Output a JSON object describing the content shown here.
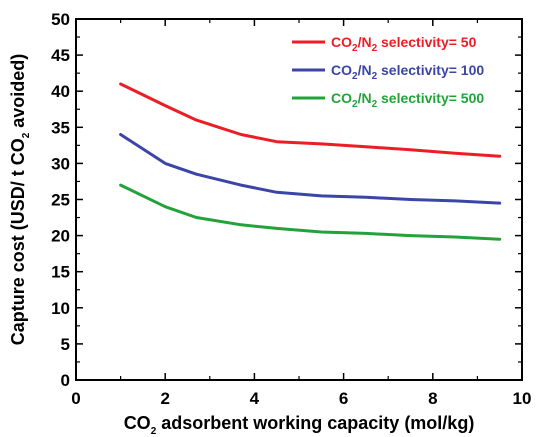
{
  "chart_data": {
    "type": "line",
    "title": "",
    "xlim": [
      0,
      10
    ],
    "ylim": [
      0,
      50
    ],
    "x_ticks": [
      0,
      2,
      4,
      6,
      8,
      10
    ],
    "y_ticks": [
      0,
      5,
      10,
      15,
      20,
      25,
      30,
      35,
      40,
      45,
      50
    ],
    "x_tick_labels": [
      "0",
      "2",
      "4",
      "6",
      "8",
      "10"
    ],
    "y_tick_labels": [
      "0",
      "5",
      "10",
      "15",
      "20",
      "25",
      "30",
      "35",
      "40",
      "45",
      "50"
    ],
    "xlabel": {
      "pre": "CO",
      "sub": "2",
      "post": " adsorbent working capacity (mol/kg)"
    },
    "ylabel": {
      "pre": "Capture cost (USD/ t CO",
      "sub": "2",
      "post": " avoided)"
    },
    "grid": false,
    "legend_position": "top-right",
    "series": [
      {
        "name": "CO2/N2 selectivity= 50",
        "legend": {
          "a": "CO",
          "s1": "2",
          "b": "/N",
          "s2": "2",
          "c": " selectivity= 50"
        },
        "color": "#ee1c25",
        "x": [
          1.0,
          2.0,
          2.7,
          3.7,
          4.5,
          5.5,
          6.5,
          7.5,
          8.5,
          9.5
        ],
        "y": [
          41.0,
          38.0,
          36.0,
          34.0,
          33.0,
          32.7,
          32.3,
          31.9,
          31.4,
          31.0
        ]
      },
      {
        "name": "CO2/N2 selectivity= 100",
        "legend": {
          "a": "CO",
          "s1": "2",
          "b": "/N",
          "s2": "2",
          "c": " selectivity= 100"
        },
        "color": "#3b45a8",
        "x": [
          1.0,
          2.0,
          2.7,
          3.7,
          4.5,
          5.5,
          6.5,
          7.5,
          8.5,
          9.5
        ],
        "y": [
          34.0,
          30.0,
          28.5,
          27.0,
          26.0,
          25.5,
          25.3,
          25.0,
          24.8,
          24.5
        ]
      },
      {
        "name": "CO2/N2 selectivity= 500",
        "legend": {
          "a": "CO",
          "s1": "2",
          "b": "/N",
          "s2": "2",
          "c": " selectivity= 500"
        },
        "color": "#22a33a",
        "x": [
          1.0,
          2.0,
          2.7,
          3.7,
          4.5,
          5.5,
          6.5,
          7.5,
          8.5,
          9.5
        ],
        "y": [
          27.0,
          24.0,
          22.5,
          21.5,
          21.0,
          20.5,
          20.3,
          20.0,
          19.8,
          19.5
        ]
      }
    ]
  }
}
